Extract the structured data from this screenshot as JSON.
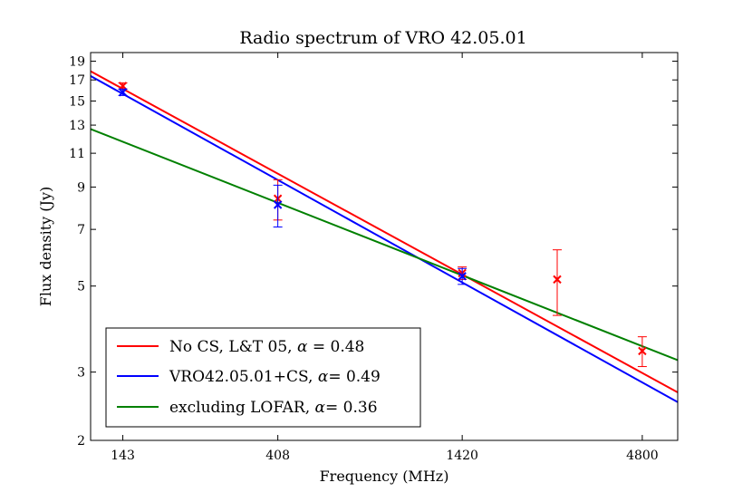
{
  "chart_data": {
    "type": "line",
    "title": "Radio spectrum of VRO 42.05.01",
    "xlabel": "Frequency (MHz)",
    "ylabel": "Flux density (Jy)",
    "xscale": "log",
    "yscale": "log",
    "xlim": [
      115,
      6100
    ],
    "ylim": [
      2,
      20
    ],
    "xticks": [
      143,
      408,
      1420,
      4800
    ],
    "xtick_labels": [
      "143",
      "408",
      "1420",
      "4800"
    ],
    "yticks": [
      2,
      3,
      5,
      7,
      9,
      11,
      13,
      15,
      17,
      19
    ],
    "ytick_labels": [
      "2",
      "3",
      "5",
      "7",
      "9",
      "11",
      "13",
      "15",
      "17",
      "19"
    ],
    "series": [
      {
        "name": "No CS, L&T 05",
        "alpha_label": "No CS, L&T 05, α = 0.48",
        "color": "#ff0000",
        "fit": {
          "alpha": 0.48,
          "x": [
            115,
            6100
          ],
          "y": [
            17.9,
            2.66
          ]
        },
        "points": [
          {
            "x": 143,
            "y": 16.4,
            "err": 0.3
          },
          {
            "x": 408,
            "y": 8.4,
            "err": 1.0
          },
          {
            "x": 1420,
            "y": 5.4,
            "err": 0.2
          },
          {
            "x": 2700,
            "y": 5.2,
            "err": 1.0
          },
          {
            "x": 4800,
            "y": 3.4,
            "err": 0.3
          }
        ]
      },
      {
        "name": "VRO42.05.01+CS",
        "alpha_label": "VRO42.05.01+CS, α= 0.49",
        "color": "#0000ff",
        "fit": {
          "alpha": 0.49,
          "x": [
            115,
            6100
          ],
          "y": [
            17.4,
            2.51
          ]
        },
        "points": [
          {
            "x": 143,
            "y": 15.8,
            "err": 0.3
          },
          {
            "x": 408,
            "y": 8.1,
            "err": 1.0
          },
          {
            "x": 1420,
            "y": 5.3,
            "err": 0.25
          }
        ]
      },
      {
        "name": "excluding LOFAR",
        "alpha_label": "excluding LOFAR, α= 0.36",
        "color": "#008000",
        "fit": {
          "alpha": 0.36,
          "x": [
            115,
            6100
          ],
          "y": [
            12.7,
            3.22
          ]
        },
        "points": []
      }
    ],
    "legend": {
      "location": "lower-left",
      "entries": [
        {
          "prefix": "No CS, L&T 05, ",
          "alpha": "α",
          "suffix": " = 0.48"
        },
        {
          "prefix": "VRO42.05.01+CS, ",
          "alpha": "α",
          "suffix": "= 0.49"
        },
        {
          "prefix": "excluding LOFAR, ",
          "alpha": "α",
          "suffix": "= 0.36"
        }
      ]
    }
  }
}
